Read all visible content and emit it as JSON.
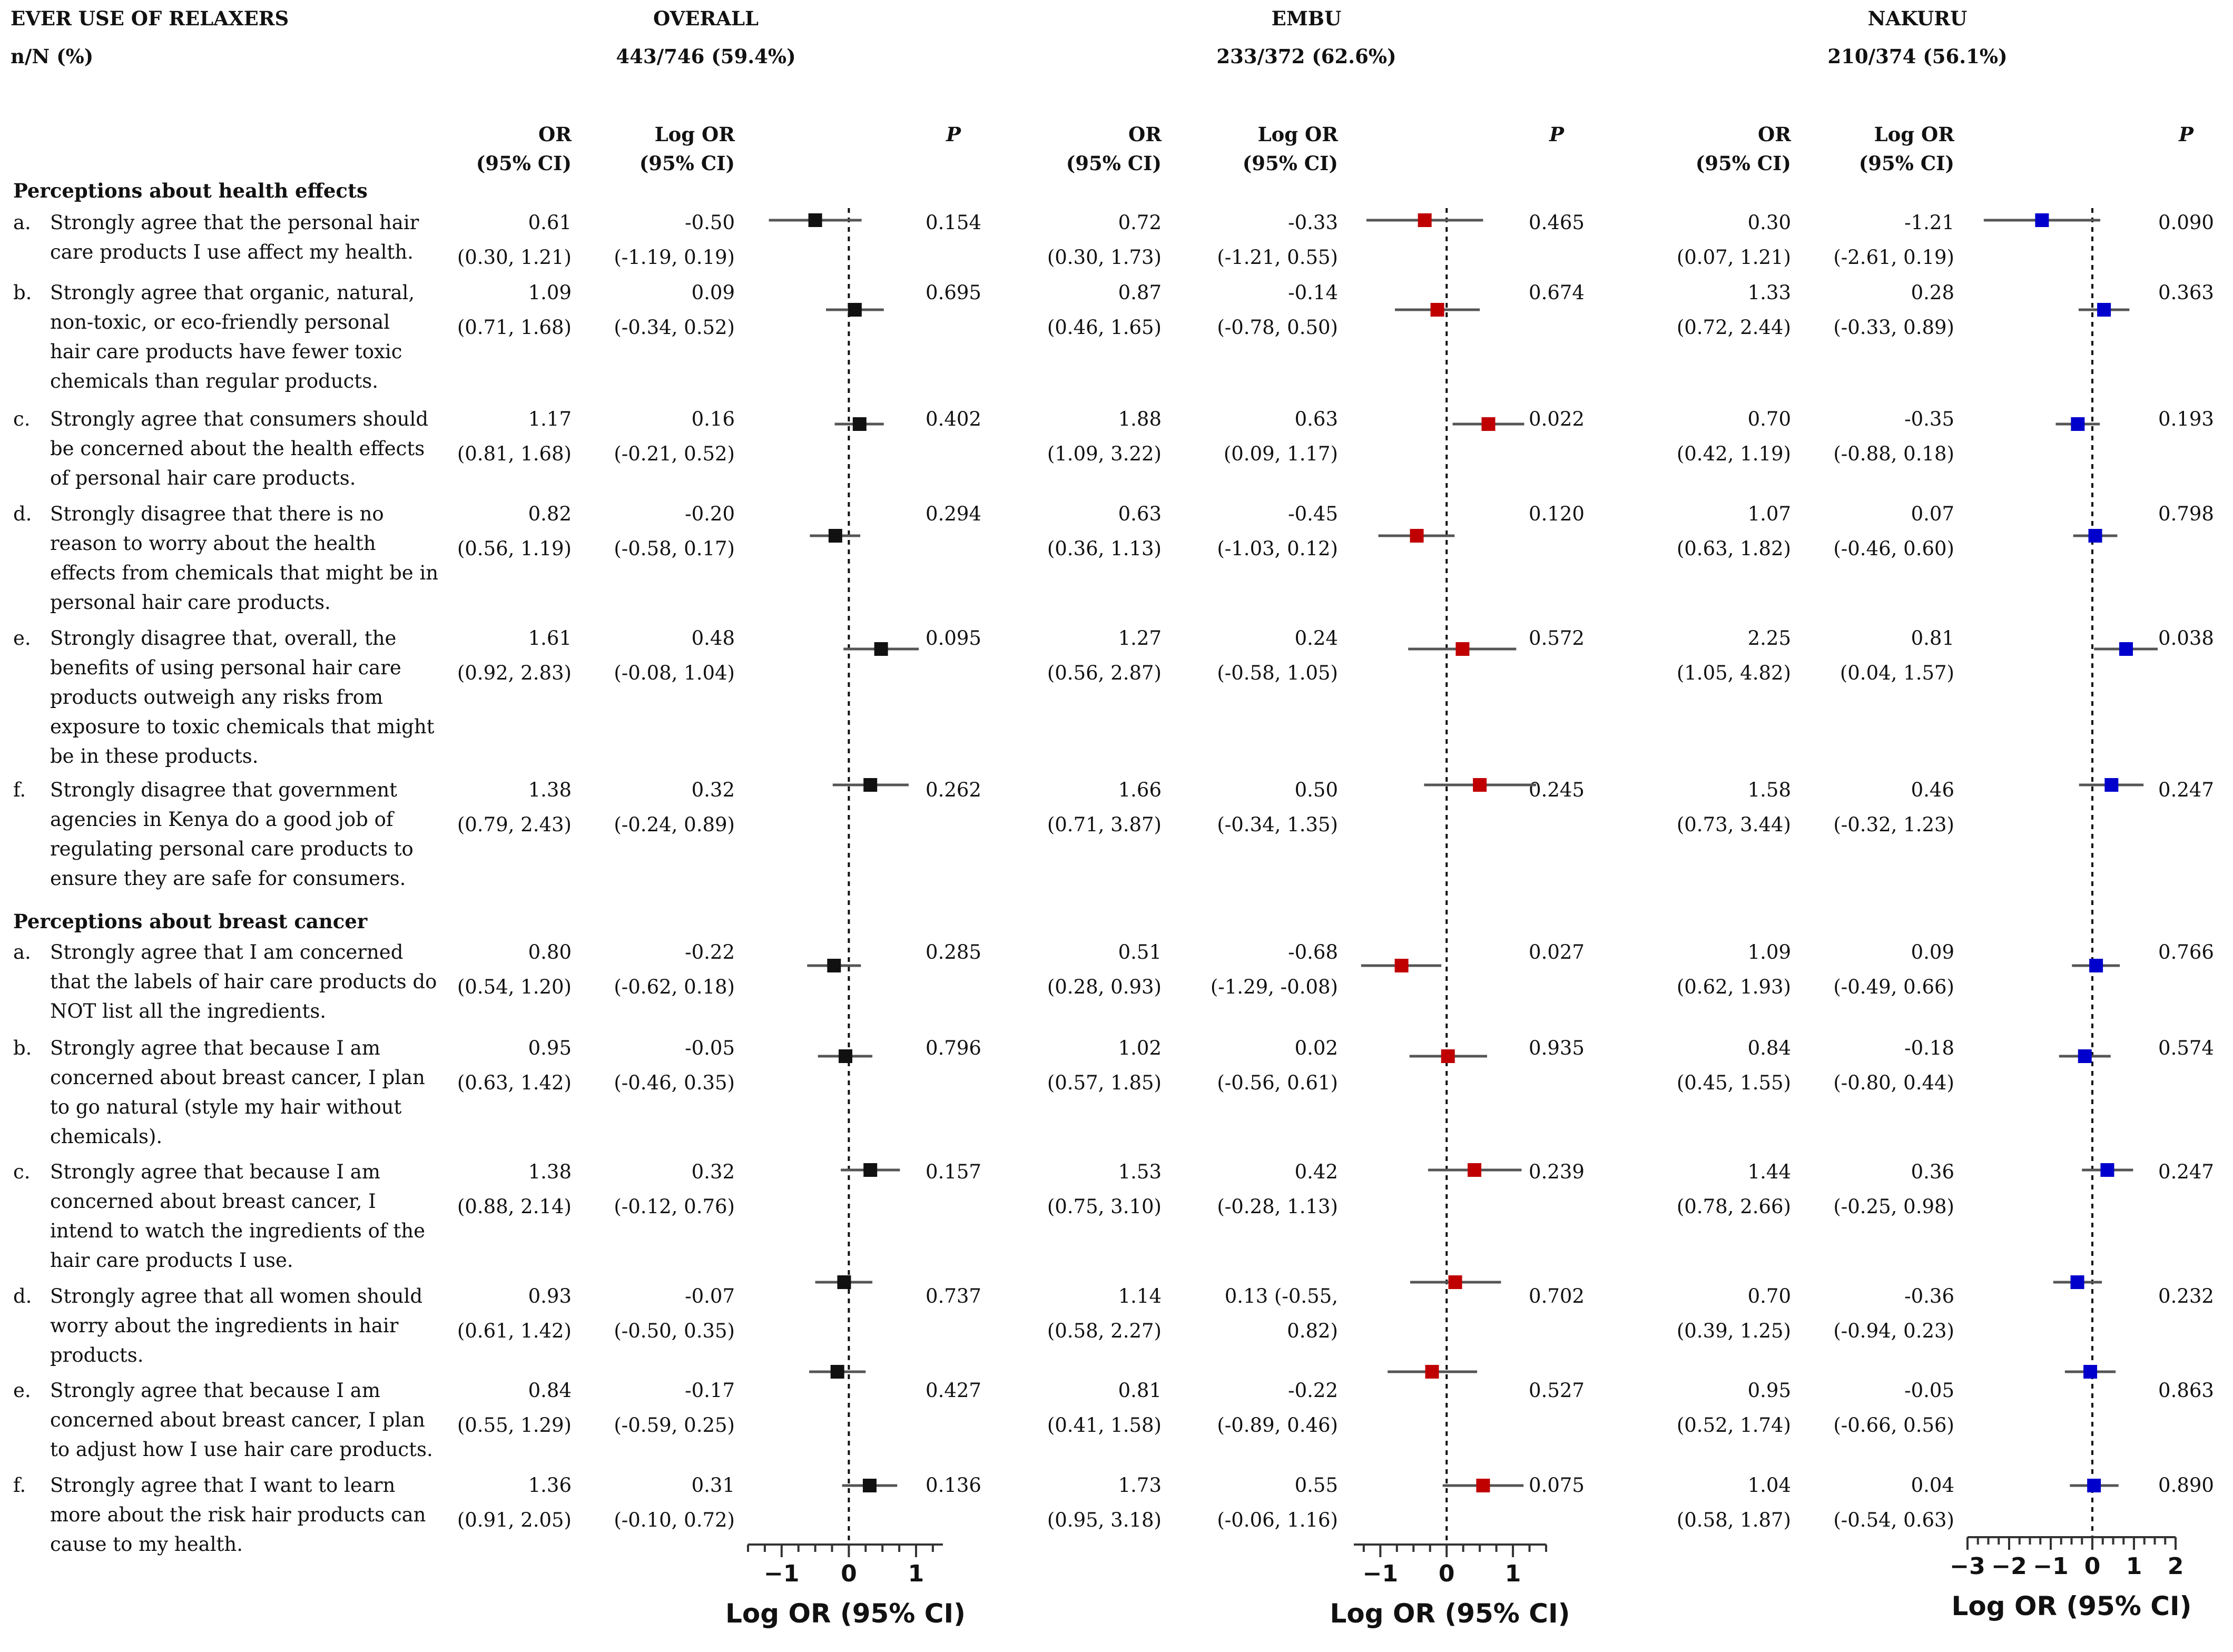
{
  "header": {
    "title": "EVER USE OF RELAXERS",
    "nN_label": "n/N (%)",
    "or_label_1": "OR",
    "or_label_2": "(95% CI)",
    "logor_label_1": "Log OR",
    "logor_label_2": "(95% CI)",
    "p_label": "P"
  },
  "colors": {
    "overall": "#111111",
    "embu": "#c00000",
    "nakuru": "#0000cc"
  },
  "chart_data": {
    "type": "forest",
    "xlabel": "Log OR (95% CI)",
    "panels": [
      {
        "id": "overall",
        "name": "OVERALL",
        "n_summary": "443/746 (59.4%)",
        "xlim": [
          -1.5,
          1.4
        ],
        "ticks": [
          -1,
          0,
          1
        ],
        "tick_labels": [
          "−1",
          "0",
          "1"
        ]
      },
      {
        "id": "embu",
        "name": "EMBU",
        "n_summary": "233/372 (62.6%)",
        "xlim": [
          -1.4,
          1.5
        ],
        "ticks": [
          -1,
          0,
          1
        ],
        "tick_labels": [
          "−1",
          "0",
          "1"
        ]
      },
      {
        "id": "nakuru",
        "name": "NAKURU",
        "n_summary": "210/374 (56.1%)",
        "xlim": [
          -3,
          2
        ],
        "ticks": [
          -3,
          -2,
          -1,
          0,
          1,
          2
        ],
        "tick_labels": [
          "−3",
          "−2",
          "−1",
          "0",
          "1",
          "2"
        ]
      }
    ],
    "sections": [
      {
        "title": "Perceptions about health effects",
        "items": [
          {
            "letter": "a.",
            "lines": [
              "Strongly agree that the personal hair",
              "care products I use affect my health."
            ],
            "overall": {
              "or": "0.61",
              "or_ci": "(0.30, 1.21)",
              "logor": "-0.50",
              "logor_ci": "(-1.19, 0.19)",
              "p": "0.154",
              "est": -0.5,
              "lo": -1.19,
              "hi": 0.19
            },
            "embu": {
              "or": "0.72",
              "or_ci": "(0.30, 1.73)",
              "logor": "-0.33",
              "logor_ci": "(-1.21, 0.55)",
              "p": "0.465",
              "est": -0.33,
              "lo": -1.21,
              "hi": 0.55
            },
            "nakuru": {
              "or": "0.30",
              "or_ci": "(0.07, 1.21)",
              "logor": "-1.21",
              "logor_ci": "(-2.61, 0.19)",
              "p": "0.090",
              "est": -1.21,
              "lo": -2.61,
              "hi": 0.19
            }
          },
          {
            "letter": "b.",
            "lines": [
              "Strongly agree that organic, natural,",
              "non-toxic, or eco-friendly personal",
              "hair care products have fewer toxic",
              "chemicals than regular products."
            ],
            "overall": {
              "or": "1.09",
              "or_ci": "(0.71, 1.68)",
              "logor": "0.09",
              "logor_ci": "(-0.34, 0.52)",
              "p": "0.695",
              "est": 0.09,
              "lo": -0.34,
              "hi": 0.52
            },
            "embu": {
              "or": "0.87",
              "or_ci": "(0.46, 1.65)",
              "logor": "-0.14",
              "logor_ci": "(-0.78, 0.50)",
              "p": "0.674",
              "est": -0.14,
              "lo": -0.78,
              "hi": 0.5
            },
            "nakuru": {
              "or": "1.33",
              "or_ci": "(0.72, 2.44)",
              "logor": "0.28",
              "logor_ci": "(-0.33, 0.89)",
              "p": "0.363",
              "est": 0.28,
              "lo": -0.33,
              "hi": 0.89
            }
          },
          {
            "letter": "c.",
            "lines": [
              "Strongly agree that consumers should",
              "be concerned about the health effects",
              "of personal hair care products."
            ],
            "overall": {
              "or": "1.17",
              "or_ci": "(0.81, 1.68)",
              "logor": "0.16",
              "logor_ci": "(-0.21, 0.52)",
              "p": "0.402",
              "est": 0.16,
              "lo": -0.21,
              "hi": 0.52
            },
            "embu": {
              "or": "1.88",
              "or_ci": "(1.09, 3.22)",
              "logor": "0.63",
              "logor_ci": "(0.09, 1.17)",
              "p": "0.022",
              "est": 0.63,
              "lo": 0.09,
              "hi": 1.17
            },
            "nakuru": {
              "or": "0.70",
              "or_ci": "(0.42, 1.19)",
              "logor": "-0.35",
              "logor_ci": "(-0.88, 0.18)",
              "p": "0.193",
              "est": -0.35,
              "lo": -0.88,
              "hi": 0.18
            }
          },
          {
            "letter": "d.",
            "lines": [
              "Strongly disagree that there is no",
              "reason to worry about the health",
              "effects from chemicals that might be in",
              "personal hair care products."
            ],
            "overall": {
              "or": "0.82",
              "or_ci": "(0.56, 1.19)",
              "logor": "-0.20",
              "logor_ci": "(-0.58, 0.17)",
              "p": "0.294",
              "est": -0.2,
              "lo": -0.58,
              "hi": 0.17
            },
            "embu": {
              "or": "0.63",
              "or_ci": "(0.36, 1.13)",
              "logor": "-0.45",
              "logor_ci": "(-1.03, 0.12)",
              "p": "0.120",
              "est": -0.45,
              "lo": -1.03,
              "hi": 0.12
            },
            "nakuru": {
              "or": "1.07",
              "or_ci": "(0.63, 1.82)",
              "logor": "0.07",
              "logor_ci": "(-0.46, 0.60)",
              "p": "0.798",
              "est": 0.07,
              "lo": -0.46,
              "hi": 0.6
            }
          },
          {
            "letter": "e.",
            "lines": [
              "Strongly disagree that, overall, the",
              "benefits of using personal hair care",
              "products outweigh any risks from",
              "exposure to toxic chemicals that might",
              "be in these products."
            ],
            "overall": {
              "or": "1.61",
              "or_ci": "(0.92, 2.83)",
              "logor": "0.48",
              "logor_ci": "(-0.08, 1.04)",
              "p": "0.095",
              "est": 0.48,
              "lo": -0.08,
              "hi": 1.04
            },
            "embu": {
              "or": "1.27",
              "or_ci": "(0.56, 2.87)",
              "logor": "0.24",
              "logor_ci": "(-0.58, 1.05)",
              "p": "0.572",
              "est": 0.24,
              "lo": -0.58,
              "hi": 1.05
            },
            "nakuru": {
              "or": "2.25",
              "or_ci": "(1.05, 4.82)",
              "logor": "0.81",
              "logor_ci": "(0.04, 1.57)",
              "p": "0.038",
              "est": 0.81,
              "lo": 0.04,
              "hi": 1.57
            }
          },
          {
            "letter": "f.",
            "lines": [
              "Strongly disagree that government",
              "agencies in Kenya do a good job of",
              "regulating personal care products to",
              "ensure they are safe for consumers."
            ],
            "overall": {
              "or": "1.38",
              "or_ci": "(0.79, 2.43)",
              "logor": "0.32",
              "logor_ci": "(-0.24, 0.89)",
              "p": "0.262",
              "est": 0.32,
              "lo": -0.24,
              "hi": 0.89
            },
            "embu": {
              "or": "1.66",
              "or_ci": "(0.71, 3.87)",
              "logor": "0.50",
              "logor_ci": "(-0.34, 1.35)",
              "p": "0.245",
              "est": 0.5,
              "lo": -0.34,
              "hi": 1.35
            },
            "nakuru": {
              "or": "1.58",
              "or_ci": "(0.73, 3.44)",
              "logor": "0.46",
              "logor_ci": "(-0.32, 1.23)",
              "p": "0.247",
              "est": 0.46,
              "lo": -0.32,
              "hi": 1.23
            }
          }
        ]
      },
      {
        "title": "Perceptions about breast cancer",
        "items": [
          {
            "letter": "a.",
            "lines": [
              "Strongly agree that I am concerned",
              "that the labels of hair care products do",
              "NOT list all the ingredients."
            ],
            "overall": {
              "or": "0.80",
              "or_ci": "(0.54, 1.20)",
              "logor": "-0.22",
              "logor_ci": "(-0.62, 0.18)",
              "p": "0.285",
              "est": -0.22,
              "lo": -0.62,
              "hi": 0.18
            },
            "embu": {
              "or": "0.51",
              "or_ci": "(0.28, 0.93)",
              "logor": "-0.68",
              "logor_ci": "(-1.29, -0.08)",
              "p": "0.027",
              "est": -0.68,
              "lo": -1.29,
              "hi": -0.08
            },
            "nakuru": {
              "or": "1.09",
              "or_ci": "(0.62, 1.93)",
              "logor": "0.09",
              "logor_ci": "(-0.49, 0.66)",
              "p": "0.766",
              "est": 0.09,
              "lo": -0.49,
              "hi": 0.66
            }
          },
          {
            "letter": "b.",
            "lines": [
              "Strongly agree that because I am",
              "concerned about breast cancer, I plan",
              "to go natural (style my hair without",
              "chemicals)."
            ],
            "overall": {
              "or": "0.95",
              "or_ci": "(0.63, 1.42)",
              "logor": "-0.05",
              "logor_ci": "(-0.46, 0.35)",
              "p": "0.796",
              "est": -0.05,
              "lo": -0.46,
              "hi": 0.35
            },
            "embu": {
              "or": "1.02",
              "or_ci": "(0.57, 1.85)",
              "logor": "0.02",
              "logor_ci": "(-0.56, 0.61)",
              "p": "0.935",
              "est": 0.02,
              "lo": -0.56,
              "hi": 0.61
            },
            "nakuru": {
              "or": "0.84",
              "or_ci": "(0.45, 1.55)",
              "logor": "-0.18",
              "logor_ci": "(-0.80, 0.44)",
              "p": "0.574",
              "est": -0.18,
              "lo": -0.8,
              "hi": 0.44
            }
          },
          {
            "letter": "c.",
            "lines": [
              "Strongly agree that because I am",
              "concerned about breast cancer, I",
              "intend to watch the ingredients of the",
              "hair care products I use."
            ],
            "overall": {
              "or": "1.38",
              "or_ci": "(0.88, 2.14)",
              "logor": "0.32",
              "logor_ci": "(-0.12, 0.76)",
              "p": "0.157",
              "est": 0.32,
              "lo": -0.12,
              "hi": 0.76
            },
            "embu": {
              "or": "1.53",
              "or_ci": "(0.75, 3.10)",
              "logor": "0.42",
              "logor_ci": "(-0.28, 1.13)",
              "p": "0.239",
              "est": 0.42,
              "lo": -0.28,
              "hi": 1.13
            },
            "nakuru": {
              "or": "1.44",
              "or_ci": "(0.78, 2.66)",
              "logor": "0.36",
              "logor_ci": "(-0.25, 0.98)",
              "p": "0.247",
              "est": 0.36,
              "lo": -0.25,
              "hi": 0.98
            }
          },
          {
            "letter": "d.",
            "lines": [
              "Strongly agree that all women should",
              "worry about the ingredients in hair",
              "products."
            ],
            "overall": {
              "or": "0.93",
              "or_ci": "(0.61, 1.42)",
              "logor": "-0.07",
              "logor_ci": "(-0.50, 0.35)",
              "p": "0.737",
              "est": -0.07,
              "lo": -0.5,
              "hi": 0.35
            },
            "embu": {
              "or": "1.14",
              "or_ci": "(0.58, 2.27)",
              "logor": "0.13 (-0.55,",
              "logor_ci": "0.82)",
              "p": "0.702",
              "est": 0.13,
              "lo": -0.55,
              "hi": 0.82
            },
            "nakuru": {
              "or": "0.70",
              "or_ci": "(0.39, 1.25)",
              "logor": "-0.36",
              "logor_ci": "(-0.94, 0.23)",
              "p": "0.232",
              "est": -0.36,
              "lo": -0.94,
              "hi": 0.23
            }
          },
          {
            "letter": "e.",
            "lines": [
              "Strongly agree that because I am",
              "concerned about breast cancer, I plan",
              "to adjust how I use hair care products."
            ],
            "overall": {
              "or": "0.84",
              "or_ci": "(0.55, 1.29)",
              "logor": "-0.17",
              "logor_ci": "(-0.59, 0.25)",
              "p": "0.427",
              "est": -0.17,
              "lo": -0.59,
              "hi": 0.25
            },
            "embu": {
              "or": "0.81",
              "or_ci": "(0.41, 1.58)",
              "logor": "-0.22",
              "logor_ci": "(-0.89, 0.46)",
              "p": "0.527",
              "est": -0.22,
              "lo": -0.89,
              "hi": 0.46
            },
            "nakuru": {
              "or": "0.95",
              "or_ci": "(0.52, 1.74)",
              "logor": "-0.05",
              "logor_ci": "(-0.66, 0.56)",
              "p": "0.863",
              "est": -0.05,
              "lo": -0.66,
              "hi": 0.56
            }
          },
          {
            "letter": "f.",
            "lines": [
              "Strongly agree that I want to learn",
              "more about the risk hair products can",
              "cause to my health."
            ],
            "overall": {
              "or": "1.36",
              "or_ci": "(0.91, 2.05)",
              "logor": "0.31",
              "logor_ci": "(-0.10, 0.72)",
              "p": "0.136",
              "est": 0.31,
              "lo": -0.1,
              "hi": 0.72
            },
            "embu": {
              "or": "1.73",
              "or_ci": "(0.95, 3.18)",
              "logor": "0.55",
              "logor_ci": "(-0.06, 1.16)",
              "p": "0.075",
              "est": 0.55,
              "lo": -0.06,
              "hi": 1.16
            },
            "nakuru": {
              "or": "1.04",
              "or_ci": "(0.58, 1.87)",
              "logor": "0.04",
              "logor_ci": "(-0.54, 0.63)",
              "p": "0.890",
              "est": 0.04,
              "lo": -0.54,
              "hi": 0.63
            }
          }
        ]
      }
    ]
  }
}
